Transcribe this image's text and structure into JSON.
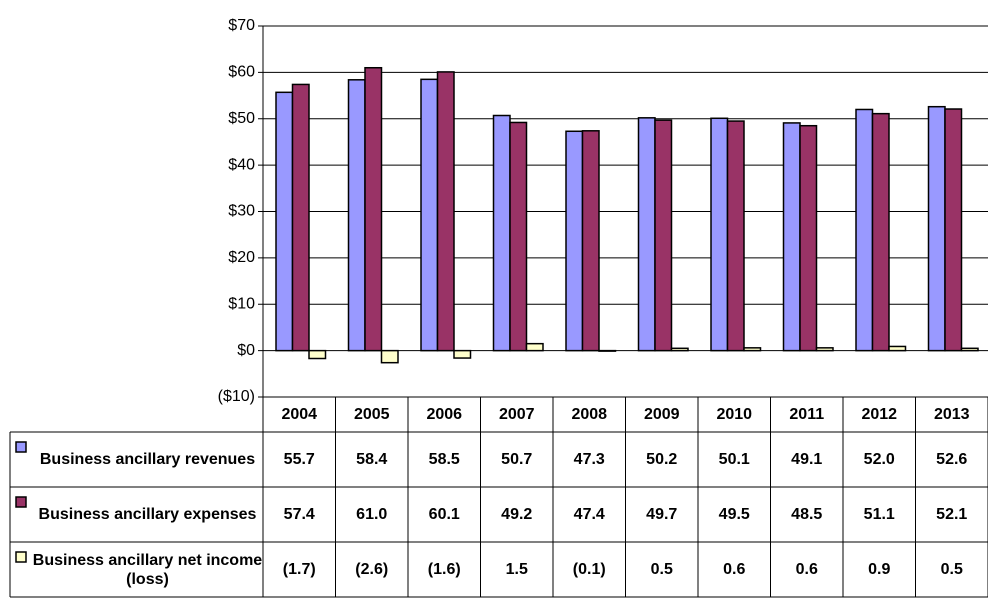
{
  "chart_data": {
    "type": "bar",
    "categories": [
      "2004",
      "2005",
      "2006",
      "2007",
      "2008",
      "2009",
      "2010",
      "2011",
      "2012",
      "2013"
    ],
    "series": [
      {
        "name": "Business ancillary revenues",
        "color": "#9999ff",
        "values": [
          55.7,
          58.4,
          58.5,
          50.7,
          47.3,
          50.2,
          50.1,
          49.1,
          52.0,
          52.6
        ],
        "value_labels": [
          "55.7",
          "58.4",
          "58.5",
          "50.7",
          "47.3",
          "50.2",
          "50.1",
          "49.1",
          "52.0",
          "52.6"
        ]
      },
      {
        "name": "Business ancillary expenses",
        "color": "#993366",
        "values": [
          57.4,
          61.0,
          60.1,
          49.2,
          47.4,
          49.7,
          49.5,
          48.5,
          51.1,
          52.1
        ],
        "value_labels": [
          "57.4",
          "61.0",
          "60.1",
          "49.2",
          "47.4",
          "49.7",
          "49.5",
          "48.5",
          "51.1",
          "52.1"
        ]
      },
      {
        "name": "Business ancillary net income (loss)",
        "color": "#ffffcc",
        "values": [
          -1.7,
          -2.6,
          -1.6,
          1.5,
          -0.1,
          0.5,
          0.6,
          0.6,
          0.9,
          0.5
        ],
        "value_labels": [
          "(1.7)",
          "(2.6)",
          "(1.6)",
          "1.5",
          "(0.1)",
          "0.5",
          "0.6",
          "0.6",
          "0.9",
          "0.5"
        ]
      }
    ],
    "ylim": [
      -10,
      70
    ],
    "yticks": [
      {
        "value": -10,
        "label": "($10)"
      },
      {
        "value": 0,
        "label": "$0"
      },
      {
        "value": 10,
        "label": "$10"
      },
      {
        "value": 20,
        "label": "$20"
      },
      {
        "value": 30,
        "label": "$30"
      },
      {
        "value": 40,
        "label": "$40"
      },
      {
        "value": 50,
        "label": "$50"
      },
      {
        "value": 60,
        "label": "$60"
      },
      {
        "value": 70,
        "label": "$70"
      }
    ],
    "grid": true
  }
}
